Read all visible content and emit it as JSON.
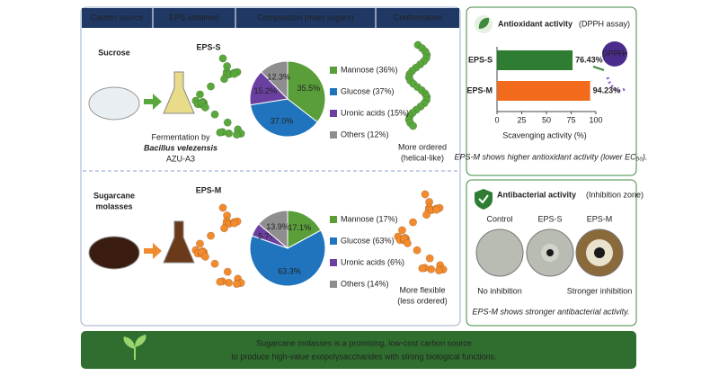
{
  "header": [
    "Carbon source",
    "EPS obtained",
    "Composition (main sugars)",
    "Conformation"
  ],
  "rows": [
    {
      "source": [
        "Sucrose"
      ],
      "eps": "EPS-S",
      "fermentation": [
        "Fermentation by",
        "Bacillus velezensis",
        "AZU-A3"
      ],
      "pie": {
        "type": "pie",
        "legend": [
          "Mannose (36%)",
          "Glucose (37%)",
          "Uronic acids (15%)",
          "Others (12%)"
        ],
        "values": [
          35.5,
          37.0,
          15.2,
          12.3
        ],
        "value_labels": [
          "35.5%",
          "37.0%",
          "15.2%",
          "12.3%"
        ],
        "colors": [
          "#5a9e3a",
          "#1f74bd",
          "#6b3fa0",
          "#8e8e8e"
        ]
      },
      "conformation": [
        "More ordered",
        "(helical-like)"
      ],
      "bead_color": "#5aa83c"
    },
    {
      "source": [
        "Sugarcane",
        "molasses"
      ],
      "eps": "EPS-M",
      "pie": {
        "type": "pie",
        "legend": [
          "Mannose (17%)",
          "Glucose (63%)",
          "Uronic acids (6%)",
          "Others (14%)"
        ],
        "values": [
          17.1,
          63.3,
          5.7,
          13.9
        ],
        "value_labels": [
          "17.1%",
          "63.3%",
          "5.7%",
          "13.9%"
        ],
        "colors": [
          "#5a9e3a",
          "#1f74bd",
          "#6b3fa0",
          "#8e8e8e"
        ]
      },
      "conformation": [
        "More flexible",
        "(less ordered)"
      ],
      "bead_color": "#f28a2e"
    }
  ],
  "antioxidant": {
    "title": "Antioxidant activity",
    "subtitle": "(DPPH assay)",
    "badge": "DPPH•",
    "type": "bar",
    "categories": [
      "EPS-S",
      "EPS-M"
    ],
    "values": [
      76.43,
      94.23
    ],
    "value_labels": [
      "76.43%",
      "94.23%"
    ],
    "colors": [
      "#2e7d32",
      "#f26b1d"
    ],
    "xlim": [
      0,
      100
    ],
    "xticks": [
      0,
      25,
      50,
      75,
      100
    ],
    "xlabel": "Scavenging activity (%)",
    "note": "EPS-M shows higher antioxidant activity (lower EC₅₀)."
  },
  "antibacterial": {
    "title": "Antibacterial activity",
    "subtitle": "(Inhibition zone)",
    "plates": [
      {
        "label": "Control",
        "result": "No inhibition"
      },
      {
        "label": "EPS-S"
      },
      {
        "label": "EPS-M",
        "result": "Stronger inhibition"
      }
    ],
    "note": "EPS-M shows stronger antibacterial activity."
  },
  "footer": [
    "Sugarcane molasses is a promising, low-cost carbon source",
    "to produce high-value exopolysaccharides with strong biological functions."
  ]
}
